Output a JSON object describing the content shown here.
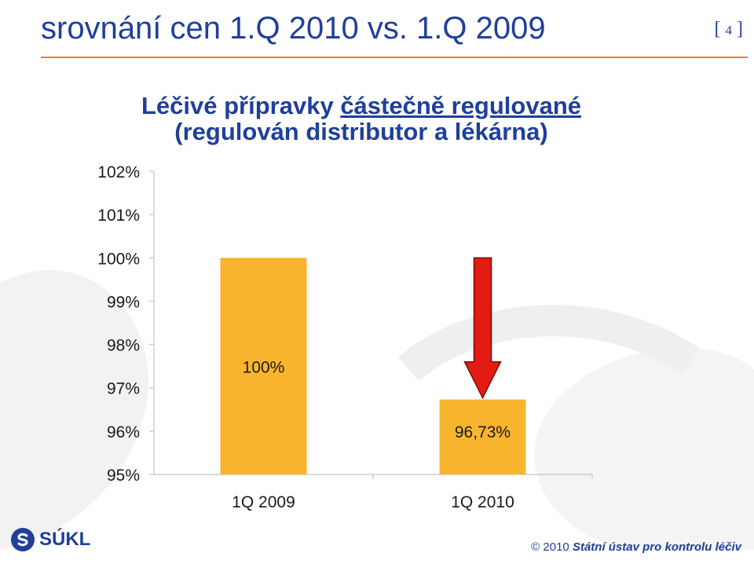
{
  "slide": {
    "title": "srovnání cen 1.Q 2010 vs. 1.Q 2009",
    "page_number": "4",
    "page_open": "[",
    "page_close": "]"
  },
  "chart_title_parts": {
    "part1": "Léčivé přípravky ",
    "part2": "částečně regulované",
    "line2": "(regulován distributor a lékárna)"
  },
  "footer": {
    "logo_text": "SÚKL",
    "copyright_symbol": "©",
    "copyright_year": "2010",
    "copyright_org": "Státní ústav pro kontrolu léčiv"
  },
  "colors": {
    "bar": "#f9b52d",
    "arrow": "#e31b12",
    "title": "#1f3f9a",
    "rule": "#f07d2c"
  },
  "chart_data": {
    "type": "bar",
    "categories": [
      "1Q 2009",
      "1Q 2010"
    ],
    "values": [
      100,
      96.73
    ],
    "data_labels": [
      "100%",
      "96,73%"
    ],
    "title": "Léčivé přípravky částečně regulované (regulován distributor a lékárna)",
    "xlabel": "",
    "ylabel": "",
    "ylim": [
      95,
      102
    ],
    "yticks": [
      95,
      96,
      97,
      98,
      99,
      100,
      101,
      102
    ],
    "ytick_labels": [
      "95%",
      "96%",
      "97%",
      "98%",
      "99%",
      "100%",
      "101%",
      "102%"
    ],
    "grid": false,
    "legend": "none",
    "annotation": "red downward arrow over 1Q 2010 bar"
  }
}
